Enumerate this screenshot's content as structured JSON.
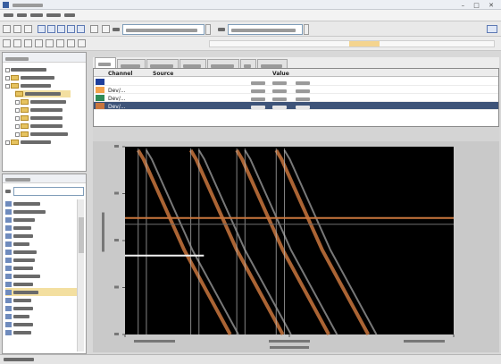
{
  "window": {
    "title": ""
  },
  "menus": [],
  "toolbar": {
    "from_label": "",
    "from_value": "",
    "to_label": "",
    "to_value": ""
  },
  "tree": {
    "header": "",
    "items": []
  },
  "vars": {
    "header": "",
    "filter_label": "",
    "filter_value": "",
    "items": [
      "",
      "",
      "",
      "",
      "",
      "",
      "",
      "",
      "",
      "",
      "",
      "",
      "",
      "",
      "",
      "",
      ""
    ]
  },
  "tabs": [],
  "table": {
    "headers": [
      "Channel",
      "Source",
      "",
      "Value",
      "",
      ""
    ],
    "rows": [
      {
        "color": "#1e3f9c",
        "channel": "",
        "cells": [
          "",
          "",
          ""
        ]
      },
      {
        "color": "#f4a24b",
        "channel": "Dev/...",
        "cells": [
          "",
          "",
          ""
        ]
      },
      {
        "color": "#2e8b57",
        "channel": "Dev/...",
        "cells": [
          "",
          "",
          ""
        ]
      },
      {
        "color": "#c9763d",
        "channel": "Dev/...",
        "cells": [
          "",
          "",
          ""
        ],
        "selected": true
      }
    ]
  },
  "chart_data": {
    "type": "line",
    "x_tick_labels": [
      "",
      "",
      ""
    ],
    "y_tick_labels": [
      "",
      "",
      "",
      "",
      ""
    ],
    "ylabel": "",
    "xlabel": "",
    "series": [
      {
        "color": "#c9763d",
        "shape": "sawtooth",
        "pulses": 4
      },
      {
        "color": "#8d8d8d",
        "shape": "sawtooth",
        "pulses": 4
      },
      {
        "color": "#c9763d",
        "shape": "flat",
        "level": 0.62
      },
      {
        "color": "#f2f2f2",
        "shape": "segment",
        "level": 0.42
      }
    ]
  },
  "status": {
    "text": ""
  }
}
